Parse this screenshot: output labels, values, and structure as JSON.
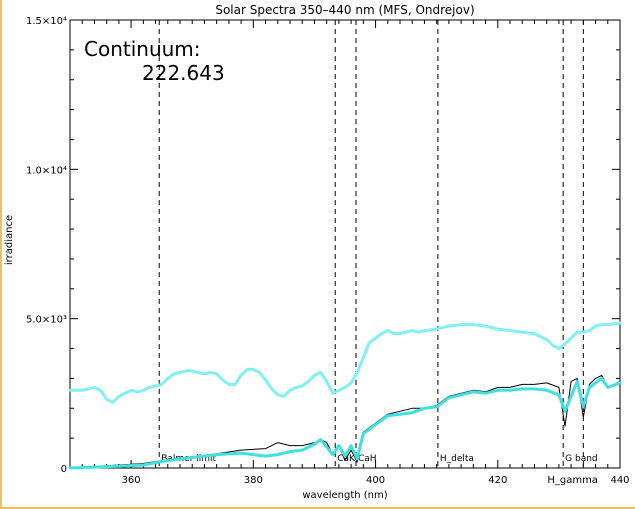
{
  "chart_data": {
    "type": "line",
    "title": "Solar Spectra 350–440 nm (MFS, Ondrejov)",
    "xlabel": "wavelength (nm)",
    "ylabel": "irradiance",
    "xlim": [
      350,
      440
    ],
    "ylim": [
      0,
      15000
    ],
    "grid": false,
    "x_ticks": [
      {
        "value": 360,
        "label": "360"
      },
      {
        "value": 380,
        "label": "380"
      },
      {
        "value": 400,
        "label": "400"
      },
      {
        "value": 420,
        "label": "420"
      },
      {
        "value": 440,
        "label": "440"
      }
    ],
    "y_ticks": [
      {
        "value": 0,
        "label": "0"
      },
      {
        "value": 5000,
        "label": "5.0×10³"
      },
      {
        "value": 10000,
        "label": "1.0×10⁴"
      },
      {
        "value": 15000,
        "label": "1.5×10⁴"
      }
    ],
    "annotation": {
      "label": "Continuum:",
      "value": "222.643"
    },
    "markers": [
      {
        "x": 364.6,
        "label": "Balmer limit"
      },
      {
        "x": 393.4,
        "label": "CaK"
      },
      {
        "x": 396.8,
        "label": "CaH"
      },
      {
        "x": 410.2,
        "label": "H_delta"
      },
      {
        "x": 430.7,
        "label": "G band"
      },
      {
        "x": 434.0,
        "label": "H_gamma"
      }
    ],
    "series": [
      {
        "color": "#80f0f0",
        "x": [
          350,
          352,
          354,
          355,
          356,
          357,
          358,
          360,
          361,
          362,
          363,
          364,
          365,
          366,
          367,
          368,
          369,
          370,
          371,
          372,
          373,
          374,
          375,
          376,
          377,
          378,
          379,
          380,
          381,
          382,
          383,
          384,
          385,
          386,
          387,
          388,
          389,
          390,
          391,
          392,
          393,
          394,
          395,
          396,
          397,
          398,
          399,
          400,
          401,
          402,
          403,
          404,
          405,
          406,
          407,
          408,
          410,
          412,
          414,
          416,
          418,
          420,
          422,
          424,
          426,
          428,
          429,
          430,
          431,
          432,
          433,
          434,
          435,
          436,
          437,
          438,
          440
        ],
        "values": [
          2600,
          2600,
          2700,
          2600,
          2300,
          2200,
          2400,
          2600,
          2550,
          2600,
          2700,
          2750,
          2800,
          3000,
          3150,
          3200,
          3250,
          3250,
          3200,
          3150,
          3200,
          3150,
          2950,
          2800,
          2800,
          3100,
          3300,
          3300,
          3200,
          2950,
          2650,
          2450,
          2400,
          2600,
          2700,
          2750,
          2900,
          3100,
          3200,
          2900,
          2500,
          2600,
          2700,
          2850,
          3200,
          3700,
          4200,
          4350,
          4500,
          4600,
          4500,
          4500,
          4550,
          4600,
          4550,
          4600,
          4650,
          4750,
          4800,
          4800,
          4750,
          4650,
          4600,
          4550,
          4500,
          4300,
          4100,
          4000,
          4150,
          4350,
          4550,
          4550,
          4600,
          4750,
          4800,
          4800,
          4850
        ]
      },
      {
        "color": "#000000",
        "x": [
          350,
          354,
          358,
          362,
          366,
          370,
          374,
          378,
          382,
          384,
          386,
          388,
          390,
          391,
          392,
          393,
          394,
          395,
          396,
          397,
          398,
          400,
          402,
          404,
          406,
          408,
          410,
          412,
          414,
          416,
          418,
          420,
          422,
          424,
          426,
          428,
          430,
          431,
          432,
          433,
          434,
          435,
          436,
          437,
          438,
          440
        ],
        "values": [
          20,
          50,
          100,
          150,
          280,
          380,
          480,
          600,
          650,
          850,
          750,
          750,
          850,
          950,
          850,
          450,
          750,
          250,
          600,
          200,
          1200,
          1500,
          1800,
          1900,
          2000,
          2000,
          2100,
          2400,
          2500,
          2600,
          2550,
          2700,
          2700,
          2800,
          2800,
          2850,
          2700,
          1400,
          2900,
          3000,
          1700,
          2800,
          3000,
          3100,
          2700,
          2900
        ]
      },
      {
        "color": "#40e0e0",
        "x": [
          350,
          354,
          358,
          362,
          366,
          370,
          374,
          378,
          382,
          384,
          386,
          388,
          390,
          391,
          392,
          393,
          394,
          395,
          396,
          397,
          398,
          400,
          402,
          404,
          406,
          408,
          410,
          412,
          414,
          416,
          418,
          420,
          422,
          424,
          426,
          428,
          430,
          431,
          432,
          433,
          434,
          435,
          436,
          437,
          438,
          440
        ],
        "values": [
          0,
          30,
          60,
          100,
          250,
          350,
          450,
          500,
          400,
          450,
          550,
          600,
          800,
          950,
          700,
          450,
          750,
          400,
          750,
          300,
          1150,
          1450,
          1750,
          1800,
          1850,
          2000,
          2050,
          2350,
          2450,
          2550,
          2500,
          2600,
          2600,
          2650,
          2650,
          2600,
          2450,
          1900,
          2400,
          2900,
          2050,
          2700,
          2850,
          3000,
          2700,
          2850
        ]
      }
    ]
  }
}
